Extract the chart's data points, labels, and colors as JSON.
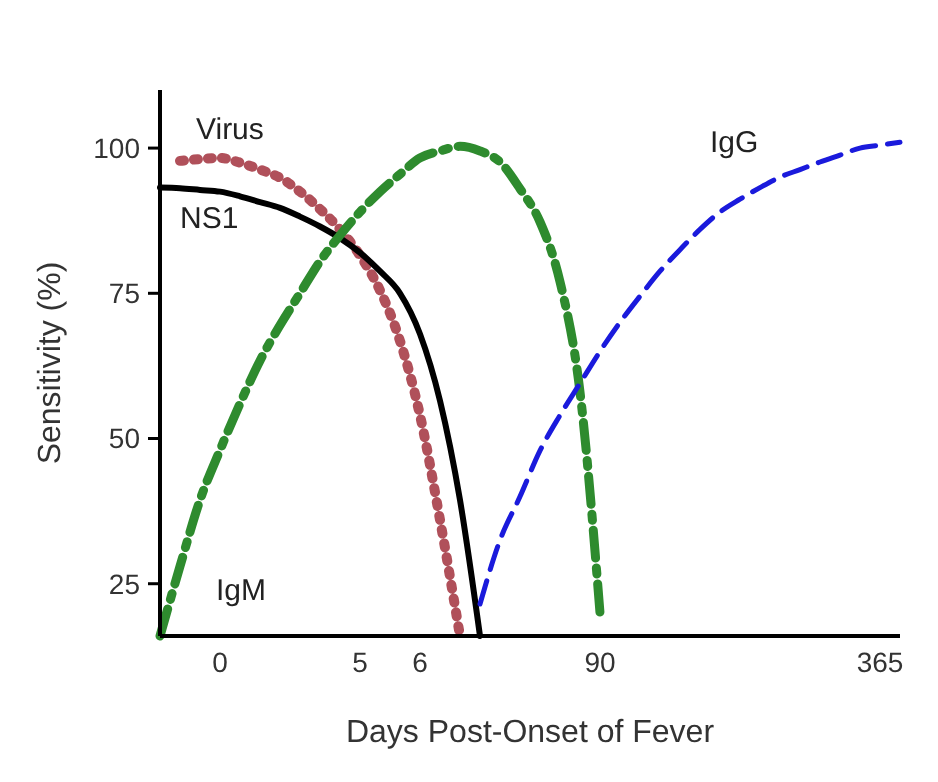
{
  "chart_data": {
    "type": "line",
    "xlabel": "Days Post-Onset of Fever",
    "ylabel": "Sensitivity (%)",
    "categories": [
      null,
      null,
      null,
      "0",
      null,
      null,
      null,
      null,
      null,
      null,
      "5",
      null,
      null,
      "6",
      null,
      null,
      null,
      null,
      null,
      null,
      null,
      null,
      "90",
      null,
      null,
      null,
      null,
      null,
      null,
      null,
      null,
      null,
      null,
      null,
      null,
      null,
      "365",
      null
    ],
    "ylim": [
      16,
      110
    ],
    "yticks": [
      25,
      50,
      75,
      100
    ],
    "grid": false,
    "marker": "none",
    "series": [
      {
        "name": "Virus",
        "color": "#b0505a",
        "line_style": "dotted",
        "values": [
          null,
          97.8,
          98.1,
          98.3,
          97.5,
          96.3,
          94.9,
          92.5,
          89.5,
          86,
          81.5,
          75.5,
          66.8,
          54,
          36,
          16,
          null,
          null,
          null,
          null,
          null,
          null,
          null,
          null,
          null,
          null,
          null,
          null,
          null,
          null,
          null,
          null,
          null,
          null,
          null,
          null,
          null,
          null
        ]
      },
      {
        "name": "NS1",
        "color": "#000000",
        "line_style": "solid",
        "values": [
          93.2,
          93.1,
          92.8,
          92.5,
          91.7,
          90.7,
          89.7,
          88.2,
          86.5,
          84.5,
          82,
          78.8,
          75,
          68,
          56.5,
          39.4,
          16,
          null,
          null,
          null,
          null,
          null,
          null,
          null,
          null,
          null,
          null,
          null,
          null,
          null,
          null,
          null,
          null,
          null,
          null,
          null,
          null,
          null
        ]
      },
      {
        "name": "IgM",
        "color": "#2e8b2e",
        "line_style": "dashdot",
        "values": [
          16,
          28,
          39.4,
          48,
          56,
          63.4,
          69.5,
          75,
          80.5,
          85,
          89,
          92.5,
          95.5,
          98.3,
          99.5,
          100.3,
          99.5,
          97.6,
          93,
          87.3,
          77,
          58,
          20,
          null,
          null,
          null,
          null,
          null,
          null,
          null,
          null,
          null,
          null,
          null,
          null,
          null,
          null,
          null
        ]
      },
      {
        "name": "IgG",
        "color": "#1a1adc",
        "line_style": "dashed",
        "values": [
          null,
          null,
          null,
          null,
          null,
          null,
          null,
          null,
          null,
          null,
          null,
          null,
          null,
          null,
          null,
          null,
          21.5,
          32.5,
          40,
          47.9,
          54,
          59.5,
          65,
          70,
          74.5,
          78.8,
          82.5,
          86,
          89,
          91.2,
          93.2,
          95,
          96.3,
          97.6,
          98.8,
          100,
          100.5,
          101
        ]
      }
    ]
  }
}
